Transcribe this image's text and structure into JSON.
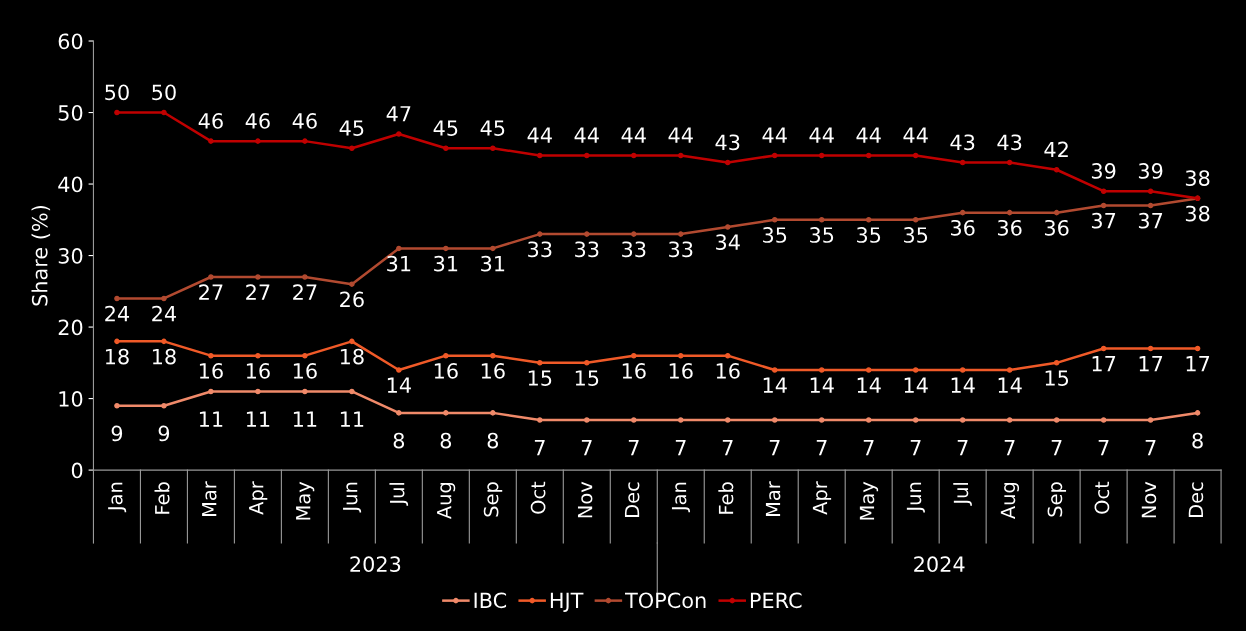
{
  "chart_data": {
    "type": "line",
    "ylabel": "Share (%)",
    "categories": [
      "Jan",
      "Feb",
      "Mar",
      "Apr",
      "May",
      "Jun",
      "Jul",
      "Aug",
      "Sep",
      "Oct",
      "Nov",
      "Dec",
      "Jan",
      "Feb",
      "Mar",
      "Apr",
      "May",
      "Jun",
      "Jul",
      "Aug",
      "Sep",
      "Oct",
      "Nov",
      "Dec"
    ],
    "series": [
      {
        "name": "IBC",
        "color": "#f08a6a",
        "values": [
          9,
          9,
          11,
          11,
          11,
          11,
          8,
          8,
          8,
          7,
          7,
          7,
          7,
          7,
          7,
          7,
          7,
          7,
          7,
          7,
          7,
          7,
          7,
          8
        ]
      },
      {
        "name": "HJT",
        "color": "#f05a28",
        "values": [
          18,
          18,
          16,
          16,
          16,
          18,
          14,
          16,
          16,
          15,
          15,
          16,
          16,
          16,
          14,
          14,
          14,
          14,
          14,
          14,
          15,
          17,
          17,
          17
        ]
      },
      {
        "name": "TOPCon",
        "color": "#b24a30",
        "values": [
          24,
          24,
          27,
          27,
          27,
          26,
          31,
          31,
          31,
          33,
          33,
          33,
          33,
          34,
          35,
          35,
          35,
          35,
          36,
          36,
          36,
          37,
          37,
          38
        ]
      },
      {
        "name": "PERC",
        "color": "#c00000",
        "values": [
          50,
          50,
          46,
          46,
          46,
          45,
          47,
          45,
          45,
          44,
          44,
          44,
          44,
          43,
          44,
          44,
          44,
          44,
          43,
          43,
          42,
          39,
          39,
          38
        ]
      }
    ],
    "annotations": [
      "2023",
      "2024"
    ],
    "ylim": [
      0,
      60
    ],
    "yticks": [
      0,
      10,
      20,
      30,
      40,
      50,
      60
    ],
    "data_labels": true,
    "marker": "circle",
    "line_style": "solid",
    "grid": false,
    "legend": "bottom"
  }
}
